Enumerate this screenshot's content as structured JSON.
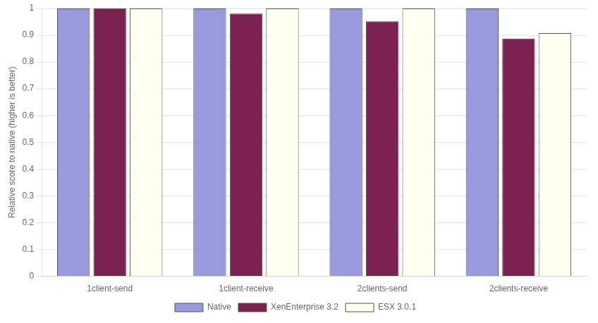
{
  "chart_data": {
    "type": "bar",
    "categories": [
      "1client-send",
      "1client-receive",
      "2clients-send",
      "2clients-receive"
    ],
    "series": [
      {
        "name": "Native",
        "color": "#9999DD",
        "values": [
          1.0,
          1.0,
          1.0,
          1.0
        ]
      },
      {
        "name": "XenEnterprise 3.2",
        "color": "#7B2251",
        "values": [
          1.0,
          0.981,
          0.952,
          0.888
        ]
      },
      {
        "name": "ESX 3.0.1",
        "color": "#FFFFF0",
        "values": [
          1.0,
          1.0,
          1.0,
          0.908
        ]
      }
    ],
    "ylabel": "Relative score to native (higher is better)",
    "ylim": [
      0,
      1.0
    ],
    "yticks": [
      0,
      0.1,
      0.2,
      0.3,
      0.4,
      0.5,
      0.6,
      0.7,
      0.8,
      0.9,
      1
    ],
    "grid": true,
    "legend": "bottom"
  }
}
